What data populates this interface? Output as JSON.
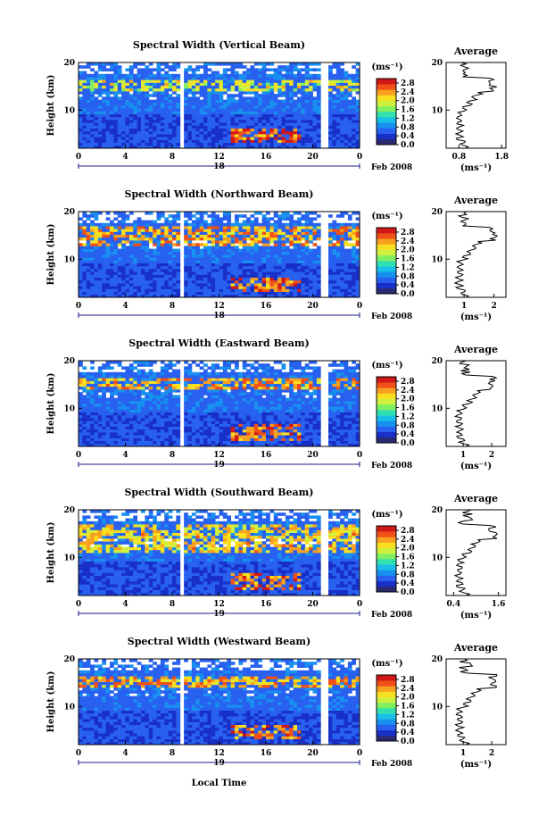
{
  "figure": {
    "xlabel": "Local Time",
    "month_label": "Feb 2008",
    "colorbar_unit": "(ms⁻¹)",
    "avg_title": "Average",
    "avg_xlabel": "(ms⁻¹)",
    "ylabel": "Height (km)"
  },
  "chart_data": [
    {
      "type": "heatmap",
      "title": "Spectral Width (Vertical Beam)",
      "ylabel": "Height (km)",
      "xlabel": "",
      "x_ticks": [
        "0",
        "4",
        "8",
        "12",
        "16",
        "20",
        "0"
      ],
      "y_ticks": [
        "20",
        "10"
      ],
      "day_label": "18",
      "date_label": "Feb 2008",
      "colorbar_ticks": [
        "2.8",
        "2.4",
        "2.0",
        "1.6",
        "1.2",
        "0.8",
        "0.4",
        "0.0"
      ],
      "colorbar_range": [
        0,
        3.0
      ],
      "xlim_hours": [
        0,
        24
      ],
      "ylim_km": [
        2,
        20
      ],
      "data_gaps_hours": [
        [
          8.6,
          9.0
        ],
        [
          20.8,
          21.2
        ]
      ],
      "high_width_regions": [
        {
          "t_start": 13,
          "t_end": 19,
          "h_start": 3,
          "h_end": 6,
          "level": 2.8
        },
        {
          "t_start": 0,
          "t_end": 24,
          "h_start": 14,
          "h_end": 16.5,
          "level": 2.2
        }
      ],
      "average": {
        "x_ticks": [
          "0.8",
          "1.8"
        ],
        "xlim": [
          0.5,
          1.9
        ],
        "y_ticks": [
          "20",
          "10"
        ]
      }
    },
    {
      "type": "heatmap",
      "title": "Spectral Width (Northward Beam)",
      "ylabel": "Height (km)",
      "xlabel": "",
      "x_ticks": [
        "0",
        "4",
        "8",
        "12",
        "16",
        "20",
        "0"
      ],
      "y_ticks": [
        "20",
        "10"
      ],
      "day_label": "18",
      "date_label": "Feb 2008",
      "colorbar_ticks": [
        "2.8",
        "2.4",
        "2.0",
        "1.6",
        "1.2",
        "0.8",
        "0.4",
        "0.0"
      ],
      "colorbar_range": [
        0,
        3.0
      ],
      "xlim_hours": [
        0,
        24
      ],
      "ylim_km": [
        2,
        20
      ],
      "data_gaps_hours": [
        [
          8.6,
          9.0
        ],
        [
          20.8,
          21.2
        ]
      ],
      "high_width_regions": [
        {
          "t_start": 13,
          "t_end": 19,
          "h_start": 3,
          "h_end": 6,
          "level": 2.8
        },
        {
          "t_start": 0,
          "t_end": 24,
          "h_start": 13,
          "h_end": 17,
          "level": 2.6
        }
      ],
      "average": {
        "x_ticks": [
          "1",
          "2"
        ],
        "xlim": [
          0.4,
          2.4
        ],
        "y_ticks": [
          "20",
          "10"
        ]
      }
    },
    {
      "type": "heatmap",
      "title": "Spectral Width (Eastward Beam)",
      "ylabel": "Height (km)",
      "xlabel": "",
      "x_ticks": [
        "0",
        "4",
        "8",
        "12",
        "16",
        "20",
        "0"
      ],
      "y_ticks": [
        "20",
        "10"
      ],
      "day_label": "19",
      "date_label": "Feb 2008",
      "colorbar_ticks": [
        "2.8",
        "2.4",
        "2.0",
        "1.6",
        "1.2",
        "0.8",
        "0.4",
        "0.0"
      ],
      "colorbar_range": [
        0,
        3.0
      ],
      "xlim_hours": [
        0,
        24
      ],
      "ylim_km": [
        2,
        20
      ],
      "data_gaps_hours": [
        [
          8.6,
          9.0
        ],
        [
          20.8,
          21.2
        ]
      ],
      "high_width_regions": [
        {
          "t_start": 13,
          "t_end": 19,
          "h_start": 3,
          "h_end": 7,
          "level": 2.8
        },
        {
          "t_start": 0,
          "t_end": 24,
          "h_start": 14,
          "h_end": 16.5,
          "level": 2.6
        }
      ],
      "average": {
        "x_ticks": [
          "1",
          "2"
        ],
        "xlim": [
          0.4,
          2.5
        ],
        "y_ticks": [
          "20",
          "10"
        ]
      }
    },
    {
      "type": "heatmap",
      "title": "Spectral Width (Southward Beam)",
      "ylabel": "Height (km)",
      "xlabel": "",
      "x_ticks": [
        "0",
        "4",
        "8",
        "12",
        "16",
        "20",
        "0"
      ],
      "y_ticks": [
        "20",
        "10"
      ],
      "day_label": "19",
      "date_label": "Feb 2008",
      "colorbar_ticks": [
        "2.8",
        "2.4",
        "2.0",
        "1.6",
        "1.2",
        "0.8",
        "0.4",
        "0.0"
      ],
      "colorbar_range": [
        0,
        3.0
      ],
      "xlim_hours": [
        0,
        24
      ],
      "ylim_km": [
        2,
        20
      ],
      "data_gaps_hours": [
        [
          8.6,
          9.0
        ],
        [
          20.8,
          21.2
        ]
      ],
      "high_width_regions": [
        {
          "t_start": 13,
          "t_end": 19,
          "h_start": 3,
          "h_end": 7,
          "level": 2.8
        },
        {
          "t_start": 0,
          "t_end": 24,
          "h_start": 11,
          "h_end": 17,
          "level": 2.4
        }
      ],
      "average": {
        "x_ticks": [
          "0.4",
          "1.6"
        ],
        "xlim": [
          0.2,
          1.8
        ],
        "y_ticks": [
          "20",
          "10"
        ]
      }
    },
    {
      "type": "heatmap",
      "title": "Spectral Width (Westward Beam)",
      "ylabel": "Height (km)",
      "xlabel": "Local Time",
      "x_ticks": [
        "0",
        "4",
        "8",
        "12",
        "16",
        "20",
        "0"
      ],
      "y_ticks": [
        "20",
        "10"
      ],
      "day_label": "19",
      "date_label": "Feb 2008",
      "colorbar_ticks": [
        "2.8",
        "2.4",
        "2.0",
        "1.6",
        "1.2",
        "0.8",
        "0.4",
        "0.0"
      ],
      "colorbar_range": [
        0,
        3.0
      ],
      "xlim_hours": [
        0,
        24
      ],
      "ylim_km": [
        2,
        20
      ],
      "data_gaps_hours": [
        [
          8.6,
          9.0
        ],
        [
          20.8,
          21.2
        ]
      ],
      "high_width_regions": [
        {
          "t_start": 13,
          "t_end": 19,
          "h_start": 3,
          "h_end": 6,
          "level": 2.8
        },
        {
          "t_start": 0,
          "t_end": 24,
          "h_start": 14,
          "h_end": 16.5,
          "level": 2.6
        }
      ],
      "average": {
        "x_ticks": [
          "1",
          "2"
        ],
        "xlim": [
          0.4,
          2.5
        ],
        "y_ticks": [
          "20",
          "10"
        ]
      }
    }
  ]
}
